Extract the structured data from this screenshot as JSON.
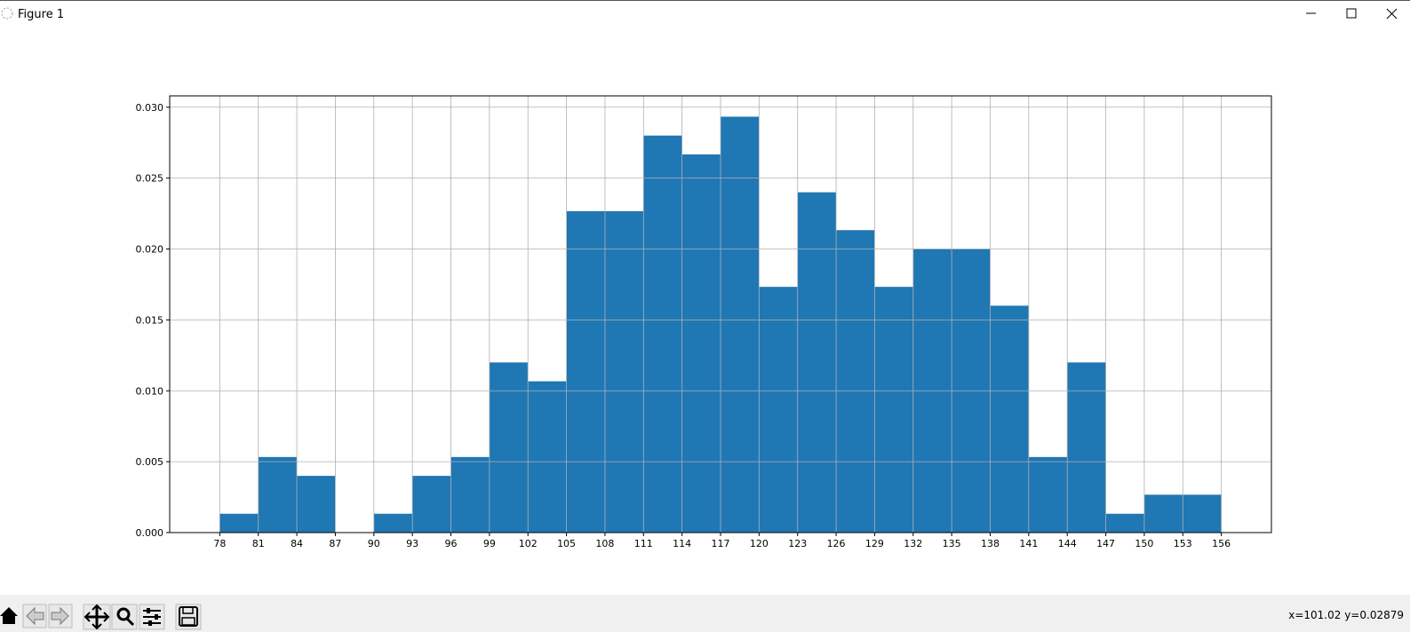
{
  "window": {
    "title": "Figure 1",
    "status": "x=101.02 y=0.02879"
  },
  "chart_data": {
    "type": "histogram",
    "bins": [
      78,
      81,
      84,
      87,
      90,
      93,
      96,
      99,
      102,
      105,
      108,
      111,
      114,
      117,
      120,
      123,
      126,
      129,
      132,
      135,
      138,
      141,
      144,
      147,
      150,
      153,
      156
    ],
    "values": [
      0.00133,
      0.00533,
      0.004,
      0,
      0.00133,
      0.004,
      0.00533,
      0.012,
      0.01067,
      0.02267,
      0.02267,
      0.028,
      0.02667,
      0.02933,
      0.01733,
      0.024,
      0.02133,
      0.01733,
      0.02,
      0.02,
      0.016,
      0.00533,
      0.012,
      0.00133,
      0.00267,
      0.00267
    ],
    "color": "#1f77b4",
    "xlim": [
      74.1,
      159.9
    ],
    "xticks": [
      78,
      81,
      84,
      87,
      90,
      93,
      96,
      99,
      102,
      105,
      108,
      111,
      114,
      117,
      120,
      123,
      126,
      129,
      132,
      135,
      138,
      141,
      144,
      147,
      150,
      153,
      156
    ],
    "ylim": [
      0,
      0.0308
    ],
    "yticks": [
      {
        "value": 0,
        "label": "0.000"
      },
      0.005,
      {
        "value": 0.01,
        "label": "0.010"
      },
      0.015,
      {
        "value": 0.02,
        "label": "0.020"
      },
      0.025,
      {
        "value": 0.03,
        "label": "0.030"
      }
    ],
    "grid": true
  }
}
